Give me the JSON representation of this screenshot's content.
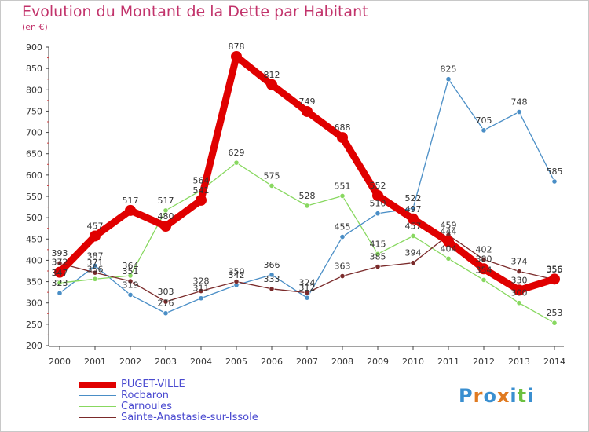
{
  "chart_data": {
    "type": "line",
    "title": "Evolution du Montant de la Dette par Habitant",
    "subtitle": "(en €)",
    "xlabel": "",
    "ylabel": "",
    "categories": [
      "2000",
      "2001",
      "2002",
      "2003",
      "2004",
      "2005",
      "2006",
      "2007",
      "2008",
      "2009",
      "2010",
      "2011",
      "2012",
      "2013",
      "2014"
    ],
    "ylim": [
      200,
      900
    ],
    "yticks": [
      200,
      250,
      300,
      350,
      400,
      450,
      500,
      550,
      600,
      650,
      700,
      750,
      800,
      850,
      900
    ],
    "grid": false,
    "legend_position": "bottom-left",
    "series": [
      {
        "name": "PUGET-VILLE",
        "color": "#e00000",
        "values": [
          372,
          457,
          517,
          480,
          541,
          878,
          812,
          749,
          688,
          552,
          497,
          444,
          380,
          330,
          356
        ],
        "labels": [
          "372",
          "457",
          "517",
          "480",
          "541",
          "878",
          "812",
          "749",
          "688",
          "552",
          "497",
          "444",
          "380",
          "330",
          "356"
        ]
      },
      {
        "name": "Rocbaron",
        "color": "#4a8ec6",
        "values": [
          323,
          387,
          319,
          276,
          311,
          342,
          366,
          312,
          455,
          510,
          522,
          825,
          705,
          748,
          585
        ],
        "labels": [
          "323",
          "387",
          "319",
          "276",
          "311",
          "342",
          "366",
          "312",
          "455",
          "510",
          "522",
          "825",
          "705",
          "748",
          "585"
        ]
      },
      {
        "name": "Carnoules",
        "color": "#88d860",
        "values": [
          347,
          356,
          364,
          517,
          564,
          629,
          575,
          528,
          551,
          415,
          457,
          404,
          354,
          300,
          253
        ],
        "labels": [
          "347",
          "356",
          "364",
          "517",
          "564",
          "629",
          "575",
          "528",
          "551",
          "415",
          "457",
          "404",
          "354",
          "300",
          "253"
        ]
      },
      {
        "name": "Sainte-Anastasie-sur-Issole",
        "color": "#7a2a2a",
        "values": [
          393,
          371,
          351,
          303,
          328,
          350,
          333,
          324,
          363,
          385,
          394,
          459,
          402,
          374,
          355
        ],
        "labels": [
          "393",
          "371",
          "351",
          "303",
          "328",
          "350",
          "333",
          "324",
          "363",
          "385",
          "394",
          "459",
          "402",
          "374",
          "355"
        ]
      }
    ]
  },
  "legend": {
    "items": [
      {
        "label": "PUGET-VILLE",
        "color": "#e00000"
      },
      {
        "label": "Rocbaron",
        "color": "#4a8ec6"
      },
      {
        "label": "Carnoules",
        "color": "#88d860"
      },
      {
        "label": "Sainte-Anastasie-sur-Issole",
        "color": "#7a2a2a"
      }
    ]
  },
  "logo": {
    "text": "Proxiti",
    "colors": [
      "#3a8fd0",
      "#e07a20",
      "#3a8fd0",
      "#e07a20",
      "#3a8fd0",
      "#6cc040",
      "#3a8fd0"
    ]
  }
}
